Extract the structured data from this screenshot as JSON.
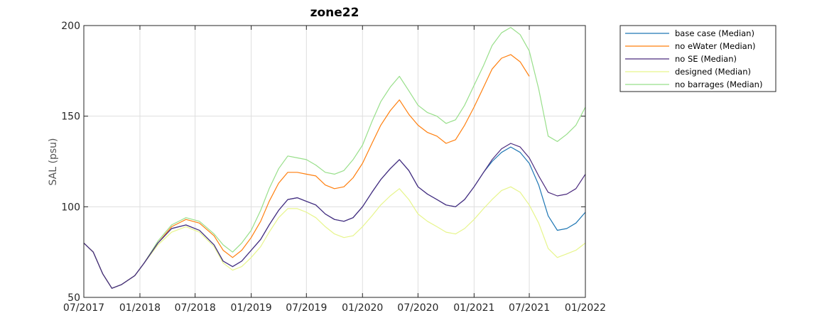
{
  "chart_data": {
    "type": "line",
    "title": "zone22",
    "xlabel": "",
    "ylabel": "SAL (psu)",
    "xlim": [
      "07/2017",
      "01/2022"
    ],
    "ylim": [
      50,
      200
    ],
    "x_ticks": [
      "07/2017",
      "01/2018",
      "07/2018",
      "01/2019",
      "07/2019",
      "01/2020",
      "07/2020",
      "01/2021",
      "07/2021",
      "01/2022"
    ],
    "y_ticks": [
      50,
      100,
      150,
      200
    ],
    "grid": true,
    "legend_position": "outside-right-top",
    "series": [
      {
        "name": "base case (Median)",
        "color": "#1f77b4",
        "points": [
          [
            "2017-07-01",
            80
          ],
          [
            "2017-08-01",
            75
          ],
          [
            "2017-09-01",
            63
          ],
          [
            "2017-10-01",
            55
          ],
          [
            "2017-11-01",
            57
          ],
          [
            "2017-12-15",
            62
          ],
          [
            "2018-01-15",
            69
          ],
          [
            "2018-03-01",
            80
          ],
          [
            "2018-04-15",
            88
          ],
          [
            "2018-06-01",
            90
          ],
          [
            "2018-07-15",
            87
          ],
          [
            "2018-09-01",
            79
          ],
          [
            "2018-10-01",
            70
          ],
          [
            "2018-11-01",
            67
          ],
          [
            "2018-12-01",
            70
          ],
          [
            "2019-01-01",
            76
          ],
          [
            "2019-02-01",
            82
          ],
          [
            "2019-03-01",
            90
          ],
          [
            "2019-04-01",
            98
          ],
          [
            "2019-05-01",
            104
          ],
          [
            "2019-06-01",
            105
          ],
          [
            "2019-07-01",
            103
          ],
          [
            "2019-08-01",
            101
          ],
          [
            "2019-09-01",
            96
          ],
          [
            "2019-10-01",
            93
          ],
          [
            "2019-11-01",
            92
          ],
          [
            "2019-12-01",
            94
          ],
          [
            "2020-01-01",
            100
          ],
          [
            "2020-02-01",
            108
          ],
          [
            "2020-03-01",
            115
          ],
          [
            "2020-04-01",
            121
          ],
          [
            "2020-05-01",
            126
          ],
          [
            "2020-06-01",
            120
          ],
          [
            "2020-07-01",
            111
          ],
          [
            "2020-08-01",
            107
          ],
          [
            "2020-09-01",
            104
          ],
          [
            "2020-10-01",
            101
          ],
          [
            "2020-11-01",
            100
          ],
          [
            "2020-12-01",
            104
          ],
          [
            "2021-01-01",
            111
          ],
          [
            "2021-02-01",
            119
          ],
          [
            "2021-03-01",
            125
          ],
          [
            "2021-04-01",
            130
          ],
          [
            "2021-05-01",
            133
          ],
          [
            "2021-06-01",
            130
          ],
          [
            "2021-07-01",
            124
          ],
          [
            "2021-08-01",
            112
          ],
          [
            "2021-09-01",
            95
          ],
          [
            "2021-10-01",
            87
          ],
          [
            "2021-11-01",
            88
          ],
          [
            "2021-12-01",
            91
          ],
          [
            "2022-01-01",
            97
          ]
        ]
      },
      {
        "name": "no eWater (Median)",
        "color": "#ff7f0e",
        "points": [
          [
            "2017-07-01",
            80
          ],
          [
            "2017-08-01",
            75
          ],
          [
            "2017-09-01",
            63
          ],
          [
            "2017-10-01",
            55
          ],
          [
            "2017-11-01",
            57
          ],
          [
            "2017-12-15",
            62
          ],
          [
            "2018-01-15",
            69
          ],
          [
            "2018-03-01",
            80
          ],
          [
            "2018-04-15",
            89
          ],
          [
            "2018-06-01",
            93
          ],
          [
            "2018-07-15",
            91
          ],
          [
            "2018-09-01",
            84
          ],
          [
            "2018-10-01",
            76
          ],
          [
            "2018-11-01",
            72
          ],
          [
            "2018-12-01",
            76
          ],
          [
            "2019-01-01",
            83
          ],
          [
            "2019-02-01",
            92
          ],
          [
            "2019-03-01",
            103
          ],
          [
            "2019-04-01",
            113
          ],
          [
            "2019-05-01",
            119
          ],
          [
            "2019-06-01",
            119
          ],
          [
            "2019-07-01",
            118
          ],
          [
            "2019-08-01",
            117
          ],
          [
            "2019-09-01",
            112
          ],
          [
            "2019-10-01",
            110
          ],
          [
            "2019-11-01",
            111
          ],
          [
            "2019-12-01",
            116
          ],
          [
            "2020-01-01",
            124
          ],
          [
            "2020-02-01",
            135
          ],
          [
            "2020-03-01",
            145
          ],
          [
            "2020-04-01",
            153
          ],
          [
            "2020-05-01",
            159
          ],
          [
            "2020-06-01",
            151
          ],
          [
            "2020-07-01",
            145
          ],
          [
            "2020-08-01",
            141
          ],
          [
            "2020-09-01",
            139
          ],
          [
            "2020-10-01",
            135
          ],
          [
            "2020-11-01",
            137
          ],
          [
            "2020-12-01",
            145
          ],
          [
            "2021-01-01",
            155
          ],
          [
            "2021-02-01",
            166
          ],
          [
            "2021-03-01",
            176
          ],
          [
            "2021-04-01",
            182
          ],
          [
            "2021-05-01",
            184
          ],
          [
            "2021-06-01",
            180
          ],
          [
            "2021-07-01",
            172
          ]
        ]
      },
      {
        "name": "no SE (Median)",
        "color": "#4b2a7d",
        "points": [
          [
            "2017-07-01",
            80
          ],
          [
            "2017-08-01",
            75
          ],
          [
            "2017-09-01",
            63
          ],
          [
            "2017-10-01",
            55
          ],
          [
            "2017-11-01",
            57
          ],
          [
            "2017-12-15",
            62
          ],
          [
            "2018-01-15",
            69
          ],
          [
            "2018-03-01",
            80
          ],
          [
            "2018-04-15",
            88
          ],
          [
            "2018-06-01",
            90
          ],
          [
            "2018-07-15",
            87
          ],
          [
            "2018-09-01",
            79
          ],
          [
            "2018-10-01",
            70
          ],
          [
            "2018-11-01",
            67
          ],
          [
            "2018-12-01",
            70
          ],
          [
            "2019-01-01",
            76
          ],
          [
            "2019-02-01",
            82
          ],
          [
            "2019-03-01",
            90
          ],
          [
            "2019-04-01",
            98
          ],
          [
            "2019-05-01",
            104
          ],
          [
            "2019-06-01",
            105
          ],
          [
            "2019-07-01",
            103
          ],
          [
            "2019-08-01",
            101
          ],
          [
            "2019-09-01",
            96
          ],
          [
            "2019-10-01",
            93
          ],
          [
            "2019-11-01",
            92
          ],
          [
            "2019-12-01",
            94
          ],
          [
            "2020-01-01",
            100
          ],
          [
            "2020-02-01",
            108
          ],
          [
            "2020-03-01",
            115
          ],
          [
            "2020-04-01",
            121
          ],
          [
            "2020-05-01",
            126
          ],
          [
            "2020-06-01",
            120
          ],
          [
            "2020-07-01",
            111
          ],
          [
            "2020-08-01",
            107
          ],
          [
            "2020-09-01",
            104
          ],
          [
            "2020-10-01",
            101
          ],
          [
            "2020-11-01",
            100
          ],
          [
            "2020-12-01",
            104
          ],
          [
            "2021-01-01",
            111
          ],
          [
            "2021-02-01",
            119
          ],
          [
            "2021-03-01",
            126
          ],
          [
            "2021-04-01",
            132
          ],
          [
            "2021-05-01",
            135
          ],
          [
            "2021-06-01",
            133
          ],
          [
            "2021-07-01",
            127
          ],
          [
            "2021-08-01",
            117
          ],
          [
            "2021-09-01",
            108
          ],
          [
            "2021-10-01",
            106
          ],
          [
            "2021-11-01",
            107
          ],
          [
            "2021-12-01",
            110
          ],
          [
            "2022-01-01",
            118
          ]
        ]
      },
      {
        "name": "designed (Median)",
        "color": "#e7f58c",
        "points": [
          [
            "2017-07-01",
            80
          ],
          [
            "2017-08-01",
            75
          ],
          [
            "2017-09-01",
            63
          ],
          [
            "2017-10-01",
            55
          ],
          [
            "2017-11-01",
            57
          ],
          [
            "2017-12-15",
            62
          ],
          [
            "2018-01-15",
            69
          ],
          [
            "2018-03-01",
            79
          ],
          [
            "2018-04-15",
            86
          ],
          [
            "2018-06-01",
            89
          ],
          [
            "2018-07-15",
            86
          ],
          [
            "2018-09-01",
            78
          ],
          [
            "2018-10-01",
            69
          ],
          [
            "2018-11-01",
            65
          ],
          [
            "2018-12-01",
            67
          ],
          [
            "2019-01-01",
            72
          ],
          [
            "2019-02-01",
            78
          ],
          [
            "2019-03-01",
            86
          ],
          [
            "2019-04-01",
            94
          ],
          [
            "2019-05-01",
            99
          ],
          [
            "2019-06-01",
            99
          ],
          [
            "2019-07-01",
            97
          ],
          [
            "2019-08-01",
            94
          ],
          [
            "2019-09-01",
            89
          ],
          [
            "2019-10-01",
            85
          ],
          [
            "2019-11-01",
            83
          ],
          [
            "2019-12-01",
            84
          ],
          [
            "2020-01-01",
            89
          ],
          [
            "2020-02-01",
            95
          ],
          [
            "2020-03-01",
            101
          ],
          [
            "2020-04-01",
            106
          ],
          [
            "2020-05-01",
            110
          ],
          [
            "2020-06-01",
            104
          ],
          [
            "2020-07-01",
            96
          ],
          [
            "2020-08-01",
            92
          ],
          [
            "2020-09-01",
            89
          ],
          [
            "2020-10-01",
            86
          ],
          [
            "2020-11-01",
            85
          ],
          [
            "2020-12-01",
            88
          ],
          [
            "2021-01-01",
            93
          ],
          [
            "2021-02-01",
            99
          ],
          [
            "2021-03-01",
            104
          ],
          [
            "2021-04-01",
            109
          ],
          [
            "2021-05-01",
            111
          ],
          [
            "2021-06-01",
            108
          ],
          [
            "2021-07-01",
            101
          ],
          [
            "2021-08-01",
            91
          ],
          [
            "2021-09-01",
            77
          ],
          [
            "2021-10-01",
            72
          ],
          [
            "2021-11-01",
            74
          ],
          [
            "2021-12-01",
            76
          ],
          [
            "2022-01-01",
            80
          ]
        ]
      },
      {
        "name": "no barrages (Median)",
        "color": "#98df8a",
        "points": [
          [
            "2017-07-01",
            80
          ],
          [
            "2017-08-01",
            75
          ],
          [
            "2017-09-01",
            63
          ],
          [
            "2017-10-01",
            55
          ],
          [
            "2017-11-01",
            57
          ],
          [
            "2017-12-15",
            62
          ],
          [
            "2018-01-15",
            69
          ],
          [
            "2018-03-01",
            81
          ],
          [
            "2018-04-15",
            90
          ],
          [
            "2018-06-01",
            94
          ],
          [
            "2018-07-15",
            92
          ],
          [
            "2018-09-01",
            85
          ],
          [
            "2018-10-01",
            79
          ],
          [
            "2018-11-01",
            75
          ],
          [
            "2018-12-01",
            80
          ],
          [
            "2019-01-01",
            87
          ],
          [
            "2019-02-01",
            98
          ],
          [
            "2019-03-01",
            110
          ],
          [
            "2019-04-01",
            121
          ],
          [
            "2019-05-01",
            128
          ],
          [
            "2019-06-01",
            127
          ],
          [
            "2019-07-01",
            126
          ],
          [
            "2019-08-01",
            123
          ],
          [
            "2019-09-01",
            119
          ],
          [
            "2019-10-01",
            118
          ],
          [
            "2019-11-01",
            120
          ],
          [
            "2019-12-01",
            126
          ],
          [
            "2020-01-01",
            134
          ],
          [
            "2020-02-01",
            147
          ],
          [
            "2020-03-01",
            158
          ],
          [
            "2020-04-01",
            166
          ],
          [
            "2020-05-01",
            172
          ],
          [
            "2020-06-01",
            164
          ],
          [
            "2020-07-01",
            156
          ],
          [
            "2020-08-01",
            152
          ],
          [
            "2020-09-01",
            150
          ],
          [
            "2020-10-01",
            146
          ],
          [
            "2020-11-01",
            148
          ],
          [
            "2020-12-01",
            156
          ],
          [
            "2021-01-01",
            167
          ],
          [
            "2021-02-01",
            178
          ],
          [
            "2021-03-01",
            189
          ],
          [
            "2021-04-01",
            196
          ],
          [
            "2021-05-01",
            199
          ],
          [
            "2021-06-01",
            195
          ],
          [
            "2021-07-01",
            186
          ],
          [
            "2021-08-01",
            165
          ],
          [
            "2021-09-01",
            139
          ],
          [
            "2021-10-01",
            136
          ],
          [
            "2021-11-01",
            140
          ],
          [
            "2021-12-01",
            145
          ],
          [
            "2022-01-01",
            155
          ]
        ]
      }
    ]
  }
}
